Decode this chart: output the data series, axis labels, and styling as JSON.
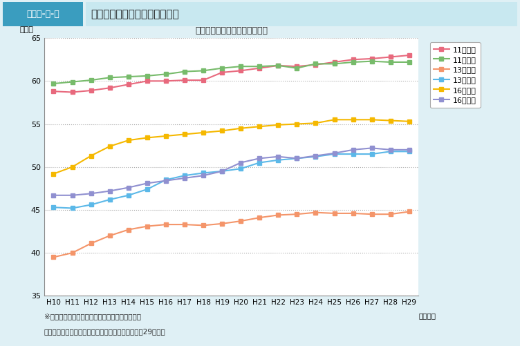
{
  "title": "新体力テスト合計点の年次推移",
  "ylabel": "（点）",
  "xlabel_suffix": "（年度）",
  "years": [
    "H10",
    "H11",
    "H12",
    "H13",
    "H14",
    "H15",
    "H16",
    "H17",
    "H18",
    "H19",
    "H20",
    "H21",
    "H22",
    "H23",
    "H24",
    "H25",
    "H26",
    "H27",
    "H28",
    "H29"
  ],
  "series": [
    {
      "label": "11歳男子",
      "color": "#E8697D",
      "values": [
        58.8,
        58.7,
        58.9,
        59.2,
        59.6,
        60.0,
        60.0,
        60.1,
        60.1,
        61.0,
        61.2,
        61.5,
        61.8,
        61.7,
        61.9,
        62.2,
        62.5,
        62.6,
        62.8,
        63.0
      ]
    },
    {
      "label": "11歳女子",
      "color": "#77BB6B",
      "values": [
        59.7,
        59.9,
        60.1,
        60.4,
        60.5,
        60.6,
        60.8,
        61.1,
        61.2,
        61.5,
        61.7,
        61.7,
        61.8,
        61.5,
        62.0,
        62.0,
        62.2,
        62.3,
        62.2,
        62.2
      ]
    },
    {
      "label": "13歳男子",
      "color": "#F4956A",
      "values": [
        39.5,
        40.0,
        41.1,
        42.0,
        42.7,
        43.1,
        43.3,
        43.3,
        43.2,
        43.4,
        43.7,
        44.1,
        44.4,
        44.5,
        44.7,
        44.6,
        44.6,
        44.5,
        44.5,
        44.8
      ]
    },
    {
      "label": "13歳女子",
      "color": "#5BB8E8",
      "values": [
        45.3,
        45.2,
        45.6,
        46.2,
        46.7,
        47.4,
        48.5,
        49.0,
        49.3,
        49.5,
        49.8,
        50.5,
        50.8,
        51.0,
        51.2,
        51.5,
        51.5,
        51.5,
        51.8,
        51.8
      ]
    },
    {
      "label": "16歳男子",
      "color": "#F5B800",
      "values": [
        49.2,
        50.0,
        51.3,
        52.4,
        53.1,
        53.4,
        53.6,
        53.8,
        54.0,
        54.2,
        54.5,
        54.7,
        54.9,
        55.0,
        55.1,
        55.5,
        55.5,
        55.5,
        55.4,
        55.3
      ]
    },
    {
      "label": "16歳女子",
      "color": "#9090D0",
      "values": [
        46.7,
        46.7,
        46.9,
        47.2,
        47.6,
        48.1,
        48.4,
        48.7,
        49.0,
        49.5,
        50.5,
        51.0,
        51.2,
        51.0,
        51.3,
        51.6,
        52.0,
        52.2,
        52.0,
        52.0
      ]
    }
  ],
  "ylim": [
    35,
    65
  ],
  "yticks": [
    35,
    40,
    45,
    50,
    55,
    60,
    65
  ],
  "grid_color": "#aaaaaa",
  "bg_color": "#DFF0F5",
  "plot_bg": "#FFFFFF",
  "header_bg_label": "#3A9DBF",
  "header_bg_title": "#C8E8F0",
  "header_label": "図表２-８-６",
  "header_title": "新体力テスト合計点の年次推移",
  "footer_note1": "※図は，３点移動平均法を用いて平滑化してある",
  "footer_note2": "（出典）スポーツ庁「体力・運動能力調査」（平成29年度）"
}
